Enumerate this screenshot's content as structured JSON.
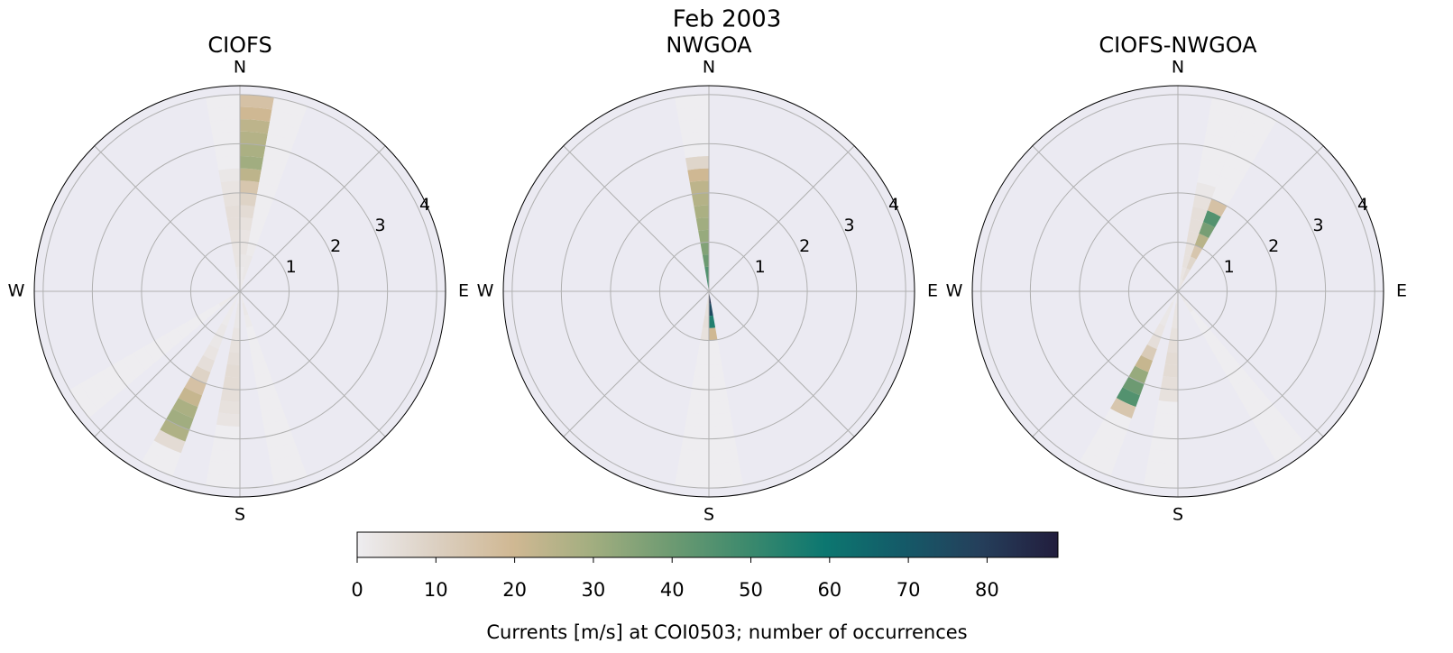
{
  "title": "Feb 2003",
  "colorbar": {
    "label": "Currents [m/s] at COI0503; number of occurrences",
    "lim": [
      0,
      89
    ],
    "ticks": [
      0,
      10,
      20,
      30,
      40,
      50,
      60,
      70,
      80
    ],
    "colors": [
      "#eeedf0",
      "#dcd0c2",
      "#d0b893",
      "#a3ae80",
      "#6f9b72",
      "#3d8a6d",
      "#0c7770",
      "#145a68",
      "#253f5b",
      "#221d3d"
    ]
  },
  "chart_data": [
    {
      "type": "polar-rose",
      "title": "CIOFS",
      "direction_labels": [
        "N",
        "E",
        "S",
        "W"
      ],
      "rlim": [
        0,
        4.18
      ],
      "rticks": [
        1,
        2,
        3,
        4
      ],
      "speed_bins": [
        0,
        0.25,
        0.5,
        0.75,
        1,
        1.25,
        1.5,
        1.75,
        2,
        2.25,
        2.5,
        2.75,
        3,
        3.25,
        3.5,
        3.75,
        4
      ],
      "sectors": [
        {
          "direction": 5,
          "counts": [
            1,
            1,
            2,
            3,
            3,
            4,
            6,
            9,
            14,
            24,
            30,
            28,
            26,
            24,
            20,
            16
          ]
        },
        {
          "direction": 355,
          "counts": [
            1,
            2,
            3,
            3,
            4,
            5,
            5,
            4,
            3,
            2,
            0,
            0,
            0,
            0,
            0,
            0
          ]
        },
        {
          "direction": 15,
          "counts": [
            1,
            2,
            2,
            1,
            0,
            0,
            0,
            0,
            0,
            0,
            0,
            0,
            0,
            0,
            0,
            0
          ]
        },
        {
          "direction": 165,
          "counts": [
            1,
            2,
            1,
            0,
            0,
            0,
            0,
            0,
            0,
            0,
            0,
            0,
            0,
            0,
            0,
            0
          ]
        },
        {
          "direction": 185,
          "counts": [
            1,
            2,
            2,
            3,
            4,
            5,
            6,
            6,
            5,
            4,
            3,
            0,
            0,
            0,
            0,
            0
          ]
        },
        {
          "direction": 205,
          "counts": [
            1,
            1,
            1,
            2,
            2,
            3,
            5,
            9,
            16,
            22,
            28,
            30,
            27,
            6,
            0,
            0
          ]
        },
        {
          "direction": 235,
          "counts": [
            2,
            1,
            0,
            0,
            0,
            0,
            0,
            0,
            0,
            0,
            0,
            0,
            0,
            0,
            0,
            0
          ]
        }
      ]
    },
    {
      "type": "polar-rose",
      "title": "NWGOA",
      "direction_labels": [
        "N",
        "E",
        "S",
        "W"
      ],
      "rlim": [
        0,
        4.18
      ],
      "rticks": [
        1,
        2,
        3,
        4
      ],
      "speed_bins": [
        0,
        0.25,
        0.5,
        0.75,
        1,
        1.25,
        1.5,
        1.75,
        2,
        2.25,
        2.5,
        2.75,
        3,
        3.25,
        3.5,
        3.75,
        4
      ],
      "sectors": [
        {
          "direction": 355,
          "counts": [
            48,
            45,
            40,
            36,
            32,
            30,
            28,
            26,
            24,
            20,
            8,
            0,
            0,
            0,
            0,
            0
          ]
        },
        {
          "direction": 175,
          "counts": [
            85,
            75,
            55,
            20,
            0,
            0,
            0,
            0,
            0,
            0,
            0,
            0,
            0,
            0,
            0,
            0
          ]
        },
        {
          "direction": 185,
          "counts": [
            3,
            4,
            5,
            4,
            0,
            0,
            0,
            0,
            0,
            0,
            0,
            0,
            0,
            0,
            0,
            0
          ]
        }
      ]
    },
    {
      "type": "polar-rose",
      "title": "CIOFS-NWGOA",
      "direction_labels": [
        "N",
        "E",
        "S",
        "W"
      ],
      "rlim": [
        0,
        4.18
      ],
      "rticks": [
        1,
        2,
        3,
        4
      ],
      "speed_bins": [
        0,
        0.25,
        0.5,
        0.75,
        1,
        1.25,
        1.5,
        1.75,
        2,
        2.25,
        2.5,
        2.75,
        3,
        3.25,
        3.5,
        3.75,
        4
      ],
      "sectors": [
        {
          "direction": 25,
          "counts": [
            3,
            5,
            8,
            14,
            25,
            38,
            45,
            16,
            0,
            0,
            0,
            0,
            0,
            0,
            0,
            0
          ]
        },
        {
          "direction": 15,
          "counts": [
            2,
            3,
            4,
            4,
            5,
            5,
            5,
            4,
            2,
            0,
            0,
            0,
            0,
            0,
            0,
            0
          ]
        },
        {
          "direction": 185,
          "counts": [
            2,
            3,
            3,
            4,
            5,
            6,
            6,
            5,
            4,
            0,
            0,
            0,
            0,
            0,
            0,
            0
          ]
        },
        {
          "direction": 205,
          "counts": [
            1,
            2,
            2,
            3,
            5,
            12,
            22,
            32,
            40,
            45,
            14,
            0,
            0,
            0,
            0,
            0
          ]
        },
        {
          "direction": 145,
          "counts": [
            2,
            1,
            0,
            0,
            0,
            0,
            0,
            0,
            0,
            0,
            0,
            0,
            0,
            0,
            0,
            0
          ]
        }
      ]
    }
  ]
}
